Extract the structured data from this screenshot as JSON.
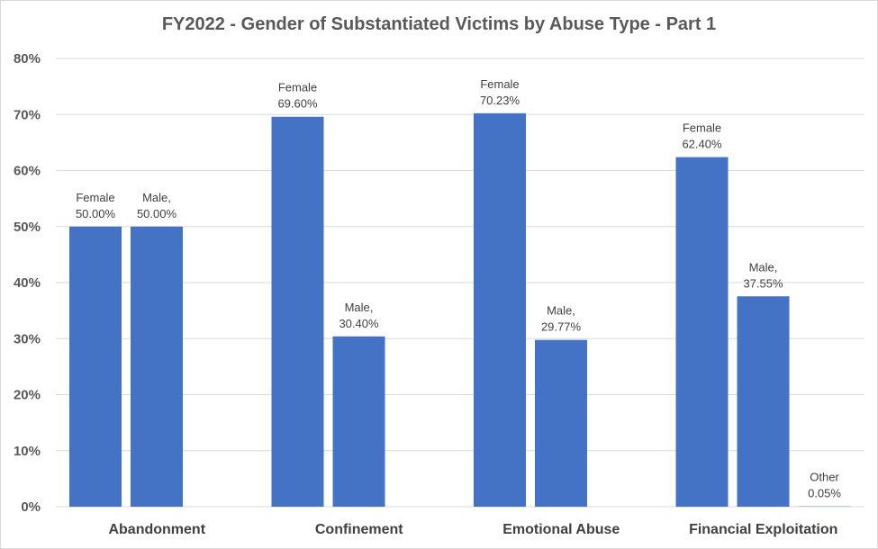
{
  "chart_data": {
    "type": "bar",
    "title": "FY2022 - Gender of Substantiated Victims by Abuse Type - Part 1",
    "xlabel": "",
    "ylabel": "",
    "ylim": [
      0,
      80
    ],
    "y_tick_values": [
      0,
      10,
      20,
      30,
      40,
      50,
      60,
      70,
      80
    ],
    "y_tick_labels": [
      "0%",
      "10%",
      "20%",
      "30%",
      "40%",
      "50%",
      "60%",
      "70%",
      "80%"
    ],
    "categories": [
      "Abandonment",
      "Confinement",
      "Emotional Abuse",
      "Financial Exploitation"
    ],
    "series": [
      {
        "values": [
          50.0,
          69.6,
          70.23,
          62.4
        ]
      },
      {
        "values": [
          50.0,
          30.4,
          29.77,
          37.55
        ]
      },
      {
        "values": [
          null,
          null,
          null,
          0.05
        ]
      }
    ],
    "data_labels": [
      [
        [
          "Female",
          "50.00%"
        ],
        [
          "Female",
          "69.60%"
        ],
        [
          "Female",
          "70.23%"
        ],
        [
          "Female",
          "62.40%"
        ]
      ],
      [
        [
          "Male,",
          "50.00%"
        ],
        [
          "Male,",
          "30.40%"
        ],
        [
          "Male,",
          "29.77%"
        ],
        [
          "Male,",
          "37.55%"
        ]
      ],
      [
        null,
        null,
        null,
        [
          "Other",
          "0.05%"
        ]
      ]
    ],
    "grid": true,
    "legend": "none",
    "colors": {
      "bar": "#4472c4",
      "grid": "#d9d9d9",
      "text": "#595959"
    }
  }
}
